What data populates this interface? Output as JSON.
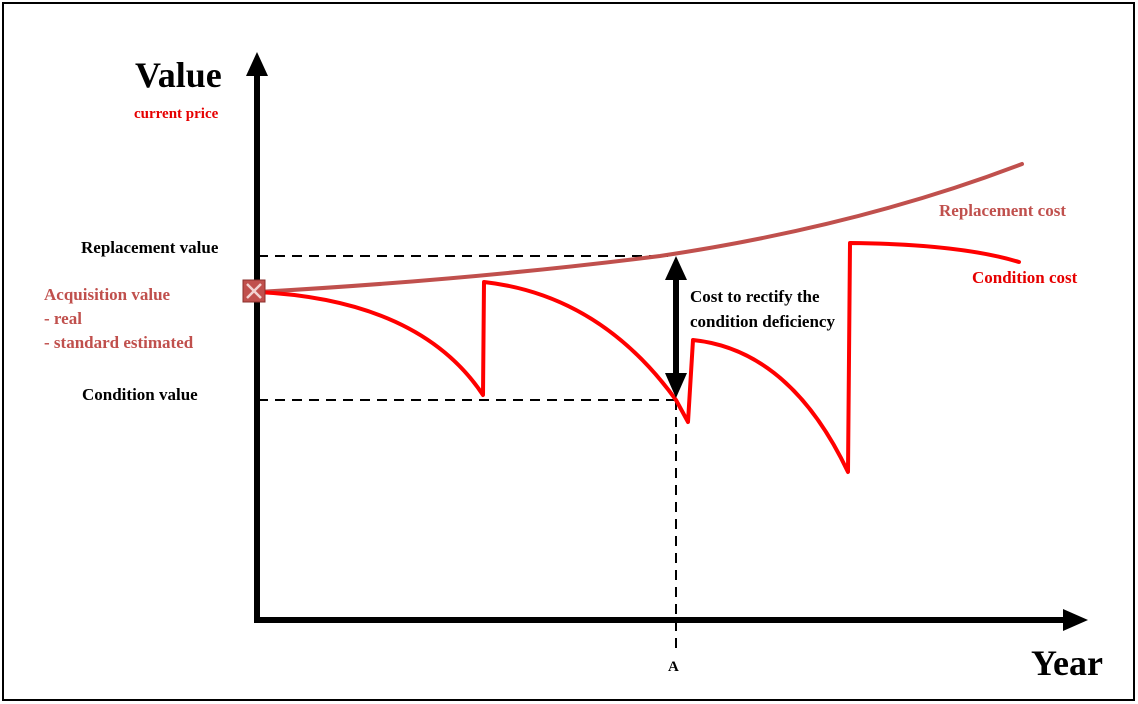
{
  "diagram": {
    "y_axis_title": "Value",
    "y_axis_subtitle": "current price",
    "x_axis_title": "Year",
    "x_marker": "A",
    "labels": {
      "replacement_value": "Replacement value",
      "condition_value": "Condition value",
      "acquisition_value_lines": [
        "Acquisition value",
        "- real",
        "- standard estimated"
      ],
      "replacement_cost": "Replacement cost",
      "condition_cost": "Condition cost",
      "cost_to_rectify_lines": [
        "Cost to rectify the",
        "condition deficiency"
      ]
    },
    "colors": {
      "axis": "#000000",
      "replacement_cost_curve": "#c0504d",
      "condition_cost_curve": "#ff0000",
      "acquisition_label": "#c0504d",
      "subtitle": "#e60000"
    }
  }
}
